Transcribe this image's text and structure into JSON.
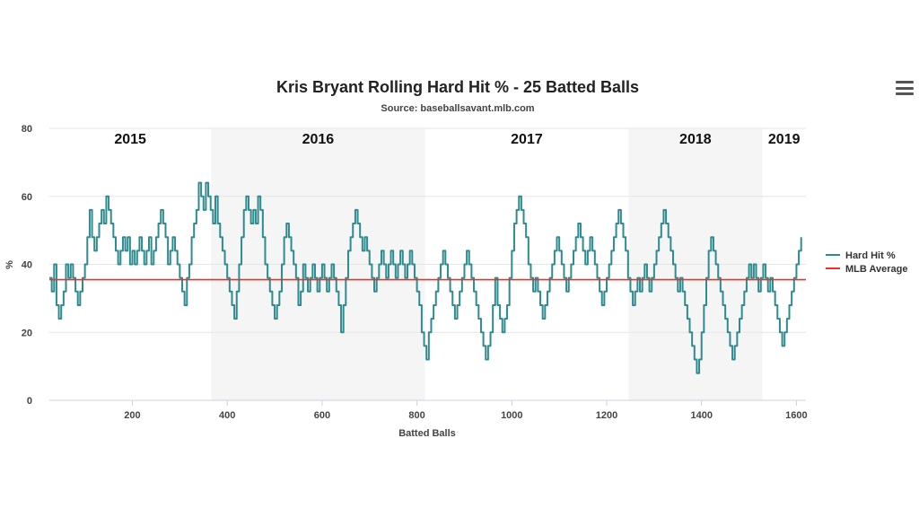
{
  "menu": {
    "icon": "hamburger-menu-icon"
  },
  "chart_data": {
    "type": "line",
    "title": "Kris Bryant Rolling Hard Hit % - 25 Batted Balls",
    "subtitle": "Source: baseballsavant.mlb.com",
    "xlabel": "Batted Balls",
    "ylabel": "%",
    "xlim": [
      25,
      1620
    ],
    "ylim": [
      0,
      80
    ],
    "x_ticks": [
      200,
      400,
      600,
      800,
      1000,
      1200,
      1400,
      1600
    ],
    "y_ticks": [
      0,
      20,
      40,
      60,
      80
    ],
    "grid": true,
    "legend_position": "right",
    "seasons": [
      {
        "label": "2015",
        "start": 25,
        "end": 366,
        "shaded": false
      },
      {
        "label": "2016",
        "start": 366,
        "end": 817,
        "shaded": true
      },
      {
        "label": "2017",
        "start": 817,
        "end": 1246,
        "shaded": false
      },
      {
        "label": "2018",
        "start": 1246,
        "end": 1528,
        "shaded": true
      },
      {
        "label": "2019",
        "start": 1528,
        "end": 1620,
        "shaded": false
      }
    ],
    "series": [
      {
        "name": "Hard Hit %",
        "color": "#2e8b8f",
        "points": [
          [
            25,
            36
          ],
          [
            30,
            32
          ],
          [
            35,
            40
          ],
          [
            40,
            28
          ],
          [
            45,
            24
          ],
          [
            50,
            28
          ],
          [
            55,
            32
          ],
          [
            60,
            40
          ],
          [
            65,
            36
          ],
          [
            70,
            40
          ],
          [
            75,
            36
          ],
          [
            80,
            32
          ],
          [
            85,
            28
          ],
          [
            90,
            32
          ],
          [
            95,
            36
          ],
          [
            100,
            40
          ],
          [
            105,
            48
          ],
          [
            110,
            56
          ],
          [
            115,
            48
          ],
          [
            120,
            44
          ],
          [
            125,
            48
          ],
          [
            130,
            52
          ],
          [
            135,
            56
          ],
          [
            140,
            52
          ],
          [
            145,
            60
          ],
          [
            150,
            56
          ],
          [
            155,
            52
          ],
          [
            160,
            48
          ],
          [
            165,
            44
          ],
          [
            170,
            40
          ],
          [
            175,
            44
          ],
          [
            180,
            48
          ],
          [
            185,
            44
          ],
          [
            190,
            48
          ],
          [
            195,
            40
          ],
          [
            200,
            44
          ],
          [
            205,
            40
          ],
          [
            210,
            44
          ],
          [
            215,
            48
          ],
          [
            220,
            44
          ],
          [
            225,
            40
          ],
          [
            230,
            44
          ],
          [
            235,
            48
          ],
          [
            240,
            40
          ],
          [
            245,
            44
          ],
          [
            250,
            48
          ],
          [
            255,
            52
          ],
          [
            260,
            56
          ],
          [
            265,
            52
          ],
          [
            270,
            48
          ],
          [
            275,
            40
          ],
          [
            280,
            44
          ],
          [
            285,
            48
          ],
          [
            290,
            44
          ],
          [
            295,
            40
          ],
          [
            300,
            36
          ],
          [
            305,
            32
          ],
          [
            310,
            28
          ],
          [
            315,
            36
          ],
          [
            320,
            40
          ],
          [
            325,
            48
          ],
          [
            330,
            52
          ],
          [
            335,
            56
          ],
          [
            340,
            64
          ],
          [
            345,
            60
          ],
          [
            350,
            56
          ],
          [
            355,
            64
          ],
          [
            360,
            60
          ],
          [
            365,
            56
          ],
          [
            370,
            52
          ],
          [
            375,
            60
          ],
          [
            380,
            52
          ],
          [
            385,
            48
          ],
          [
            390,
            44
          ],
          [
            395,
            40
          ],
          [
            400,
            36
          ],
          [
            405,
            32
          ],
          [
            410,
            28
          ],
          [
            415,
            24
          ],
          [
            420,
            32
          ],
          [
            425,
            40
          ],
          [
            430,
            48
          ],
          [
            435,
            56
          ],
          [
            440,
            60
          ],
          [
            445,
            56
          ],
          [
            450,
            52
          ],
          [
            455,
            56
          ],
          [
            460,
            52
          ],
          [
            465,
            60
          ],
          [
            470,
            56
          ],
          [
            475,
            48
          ],
          [
            480,
            40
          ],
          [
            485,
            36
          ],
          [
            490,
            32
          ],
          [
            495,
            28
          ],
          [
            500,
            24
          ],
          [
            505,
            28
          ],
          [
            510,
            32
          ],
          [
            515,
            40
          ],
          [
            520,
            48
          ],
          [
            525,
            52
          ],
          [
            530,
            48
          ],
          [
            535,
            44
          ],
          [
            540,
            40
          ],
          [
            545,
            36
          ],
          [
            550,
            28
          ],
          [
            555,
            32
          ],
          [
            560,
            40
          ],
          [
            565,
            36
          ],
          [
            570,
            32
          ],
          [
            575,
            36
          ],
          [
            580,
            40
          ],
          [
            585,
            36
          ],
          [
            590,
            32
          ],
          [
            595,
            36
          ],
          [
            600,
            40
          ],
          [
            605,
            36
          ],
          [
            610,
            32
          ],
          [
            615,
            36
          ],
          [
            620,
            40
          ],
          [
            625,
            36
          ],
          [
            630,
            32
          ],
          [
            635,
            28
          ],
          [
            640,
            20
          ],
          [
            645,
            28
          ],
          [
            650,
            36
          ],
          [
            655,
            44
          ],
          [
            660,
            48
          ],
          [
            665,
            52
          ],
          [
            670,
            56
          ],
          [
            675,
            52
          ],
          [
            680,
            48
          ],
          [
            685,
            44
          ],
          [
            690,
            48
          ],
          [
            695,
            44
          ],
          [
            700,
            40
          ],
          [
            705,
            36
          ],
          [
            710,
            32
          ],
          [
            715,
            36
          ],
          [
            720,
            40
          ],
          [
            725,
            44
          ],
          [
            730,
            40
          ],
          [
            735,
            36
          ],
          [
            740,
            40
          ],
          [
            745,
            44
          ],
          [
            750,
            40
          ],
          [
            755,
            36
          ],
          [
            760,
            40
          ],
          [
            765,
            44
          ],
          [
            770,
            40
          ],
          [
            775,
            36
          ],
          [
            780,
            40
          ],
          [
            785,
            44
          ],
          [
            790,
            40
          ],
          [
            795,
            36
          ],
          [
            800,
            32
          ],
          [
            805,
            28
          ],
          [
            810,
            20
          ],
          [
            815,
            16
          ],
          [
            820,
            12
          ],
          [
            825,
            20
          ],
          [
            830,
            24
          ],
          [
            835,
            28
          ],
          [
            840,
            32
          ],
          [
            845,
            36
          ],
          [
            850,
            40
          ],
          [
            855,
            44
          ],
          [
            860,
            40
          ],
          [
            865,
            36
          ],
          [
            870,
            32
          ],
          [
            875,
            28
          ],
          [
            880,
            24
          ],
          [
            885,
            28
          ],
          [
            890,
            32
          ],
          [
            895,
            36
          ],
          [
            900,
            40
          ],
          [
            905,
            44
          ],
          [
            910,
            40
          ],
          [
            915,
            36
          ],
          [
            920,
            32
          ],
          [
            925,
            28
          ],
          [
            930,
            24
          ],
          [
            935,
            20
          ],
          [
            940,
            16
          ],
          [
            945,
            12
          ],
          [
            950,
            16
          ],
          [
            955,
            20
          ],
          [
            960,
            28
          ],
          [
            965,
            36
          ],
          [
            970,
            28
          ],
          [
            975,
            24
          ],
          [
            980,
            20
          ],
          [
            985,
            24
          ],
          [
            990,
            28
          ],
          [
            995,
            36
          ],
          [
            1000,
            44
          ],
          [
            1005,
            52
          ],
          [
            1010,
            56
          ],
          [
            1015,
            60
          ],
          [
            1020,
            56
          ],
          [
            1025,
            52
          ],
          [
            1030,
            48
          ],
          [
            1035,
            40
          ],
          [
            1040,
            36
          ],
          [
            1045,
            32
          ],
          [
            1050,
            36
          ],
          [
            1055,
            32
          ],
          [
            1060,
            28
          ],
          [
            1065,
            24
          ],
          [
            1070,
            28
          ],
          [
            1075,
            32
          ],
          [
            1080,
            36
          ],
          [
            1085,
            40
          ],
          [
            1090,
            44
          ],
          [
            1095,
            48
          ],
          [
            1100,
            44
          ],
          [
            1105,
            40
          ],
          [
            1110,
            36
          ],
          [
            1115,
            32
          ],
          [
            1120,
            36
          ],
          [
            1125,
            40
          ],
          [
            1130,
            44
          ],
          [
            1135,
            48
          ],
          [
            1140,
            52
          ],
          [
            1145,
            48
          ],
          [
            1150,
            44
          ],
          [
            1155,
            40
          ],
          [
            1160,
            44
          ],
          [
            1165,
            48
          ],
          [
            1170,
            44
          ],
          [
            1175,
            40
          ],
          [
            1180,
            36
          ],
          [
            1185,
            32
          ],
          [
            1190,
            28
          ],
          [
            1195,
            32
          ],
          [
            1200,
            36
          ],
          [
            1205,
            40
          ],
          [
            1210,
            44
          ],
          [
            1215,
            48
          ],
          [
            1220,
            52
          ],
          [
            1225,
            56
          ],
          [
            1230,
            52
          ],
          [
            1235,
            48
          ],
          [
            1240,
            44
          ],
          [
            1245,
            36
          ],
          [
            1250,
            32
          ],
          [
            1255,
            28
          ],
          [
            1260,
            32
          ],
          [
            1265,
            36
          ],
          [
            1270,
            32
          ],
          [
            1275,
            36
          ],
          [
            1280,
            40
          ],
          [
            1285,
            36
          ],
          [
            1290,
            32
          ],
          [
            1295,
            36
          ],
          [
            1300,
            40
          ],
          [
            1305,
            44
          ],
          [
            1310,
            48
          ],
          [
            1315,
            52
          ],
          [
            1320,
            56
          ],
          [
            1325,
            52
          ],
          [
            1330,
            48
          ],
          [
            1335,
            44
          ],
          [
            1340,
            40
          ],
          [
            1345,
            36
          ],
          [
            1350,
            32
          ],
          [
            1355,
            36
          ],
          [
            1360,
            32
          ],
          [
            1365,
            28
          ],
          [
            1370,
            24
          ],
          [
            1375,
            20
          ],
          [
            1380,
            16
          ],
          [
            1385,
            12
          ],
          [
            1390,
            8
          ],
          [
            1395,
            12
          ],
          [
            1400,
            20
          ],
          [
            1405,
            28
          ],
          [
            1410,
            36
          ],
          [
            1415,
            44
          ],
          [
            1420,
            48
          ],
          [
            1425,
            44
          ],
          [
            1430,
            40
          ],
          [
            1435,
            36
          ],
          [
            1440,
            32
          ],
          [
            1445,
            28
          ],
          [
            1450,
            24
          ],
          [
            1455,
            20
          ],
          [
            1460,
            16
          ],
          [
            1465,
            12
          ],
          [
            1470,
            16
          ],
          [
            1475,
            20
          ],
          [
            1480,
            24
          ],
          [
            1485,
            28
          ],
          [
            1490,
            32
          ],
          [
            1495,
            36
          ],
          [
            1500,
            40
          ],
          [
            1505,
            36
          ],
          [
            1510,
            40
          ],
          [
            1515,
            36
          ],
          [
            1520,
            32
          ],
          [
            1525,
            36
          ],
          [
            1530,
            40
          ],
          [
            1535,
            36
          ],
          [
            1540,
            32
          ],
          [
            1545,
            36
          ],
          [
            1550,
            32
          ],
          [
            1555,
            28
          ],
          [
            1560,
            24
          ],
          [
            1565,
            20
          ],
          [
            1570,
            16
          ],
          [
            1575,
            20
          ],
          [
            1580,
            24
          ],
          [
            1585,
            28
          ],
          [
            1590,
            32
          ],
          [
            1595,
            36
          ],
          [
            1600,
            40
          ],
          [
            1605,
            44
          ],
          [
            1610,
            48
          ]
        ]
      },
      {
        "name": "MLB Average",
        "color": "#e8322a",
        "constant": 35.5
      }
    ]
  }
}
